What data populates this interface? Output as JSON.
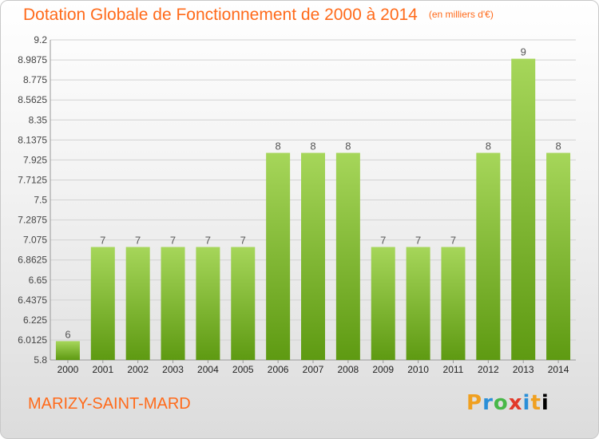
{
  "header": {
    "title": "Dotation Globale de Fonctionnement de 2000 à 2014",
    "unit": "(en milliers d'€)"
  },
  "footer": {
    "commune": "MARIZY-SAINT-MARD",
    "logo": "Proxiti"
  },
  "colors": {
    "accent": "#ff6a1a",
    "bar_top": "#a6d65a",
    "bar_bottom": "#5e9a12"
  },
  "chart_data": {
    "type": "bar",
    "title": "Dotation Globale de Fonctionnement de 2000 à 2014",
    "xlabel": "",
    "ylabel": "",
    "categories": [
      "2000",
      "2001",
      "2002",
      "2003",
      "2004",
      "2005",
      "2006",
      "2007",
      "2008",
      "2009",
      "2010",
      "2011",
      "2012",
      "2013",
      "2014"
    ],
    "values": [
      6,
      7,
      7,
      7,
      7,
      7,
      8,
      8,
      8,
      7,
      7,
      7,
      8,
      9,
      8
    ],
    "data_labels": [
      "6",
      "7",
      "7",
      "7",
      "7",
      "7",
      "8",
      "8",
      "8",
      "7",
      "7",
      "7",
      "8",
      "9",
      "8"
    ],
    "ylim": [
      5.8,
      9.2
    ],
    "yticks": [
      5.8,
      6.0125,
      6.225,
      6.4375,
      6.65,
      6.8625,
      7.075,
      7.2875,
      7.5,
      7.7125,
      7.925,
      8.1375,
      8.35,
      8.5625,
      8.775,
      8.9875,
      9.2
    ],
    "ytick_labels": [
      "5.8",
      "6.0125",
      "6.225",
      "6.4375",
      "6.65",
      "6.8625",
      "7.075",
      "7.2875",
      "7.5",
      "7.7125",
      "7.925",
      "8.1375",
      "8.35",
      "8.5625",
      "8.775",
      "8.9875",
      "9.2"
    ],
    "grid": true,
    "legend": "none"
  }
}
